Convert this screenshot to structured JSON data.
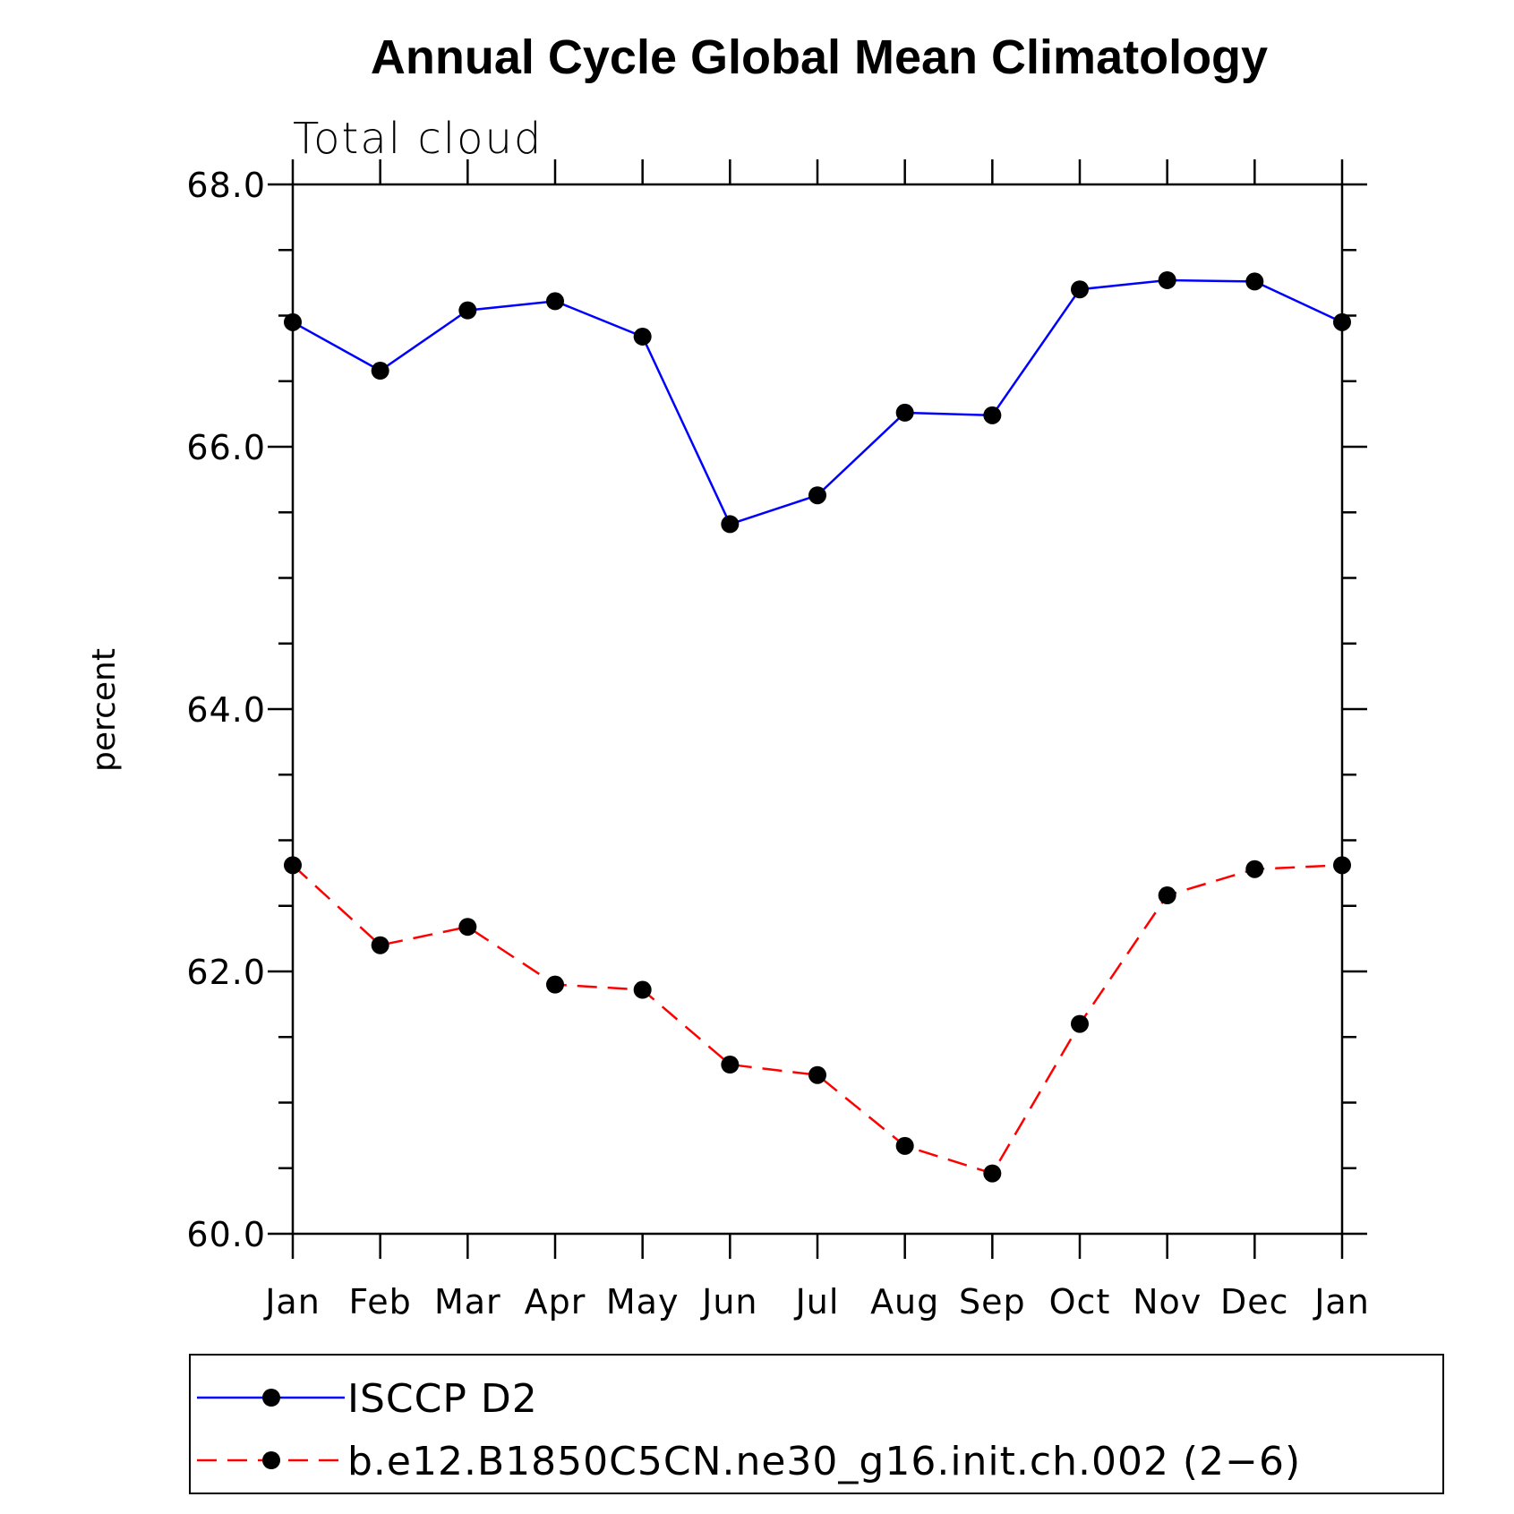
{
  "chart_data": {
    "type": "line",
    "title": "Annual Cycle Global Mean Climatology",
    "subtitle": "Total cloud",
    "xlabel": "",
    "ylabel": "percent",
    "categories": [
      "Jan",
      "Feb",
      "Mar",
      "Apr",
      "May",
      "Jun",
      "Jul",
      "Aug",
      "Sep",
      "Oct",
      "Nov",
      "Dec",
      "Jan"
    ],
    "ylim": [
      60.0,
      68.0
    ],
    "yticks": [
      "60.0",
      "62.0",
      "64.0",
      "66.0",
      "68.0"
    ],
    "grid": false,
    "legend_position": "bottom",
    "series": [
      {
        "name": "ISCCP D2",
        "color": "#0000ff",
        "dash": "solid",
        "values": [
          66.95,
          66.58,
          67.04,
          67.11,
          66.84,
          65.41,
          65.63,
          66.26,
          66.24,
          67.2,
          67.27,
          67.26,
          66.95
        ]
      },
      {
        "name": "b.e12.B1850C5CN.ne30_g16.init.ch.002 (2−6)",
        "color": "#ff0000",
        "dash": "dashed",
        "values": [
          62.81,
          62.2,
          62.34,
          61.9,
          61.86,
          61.29,
          61.21,
          60.67,
          60.46,
          61.6,
          62.58,
          62.78,
          62.81
        ]
      }
    ]
  }
}
